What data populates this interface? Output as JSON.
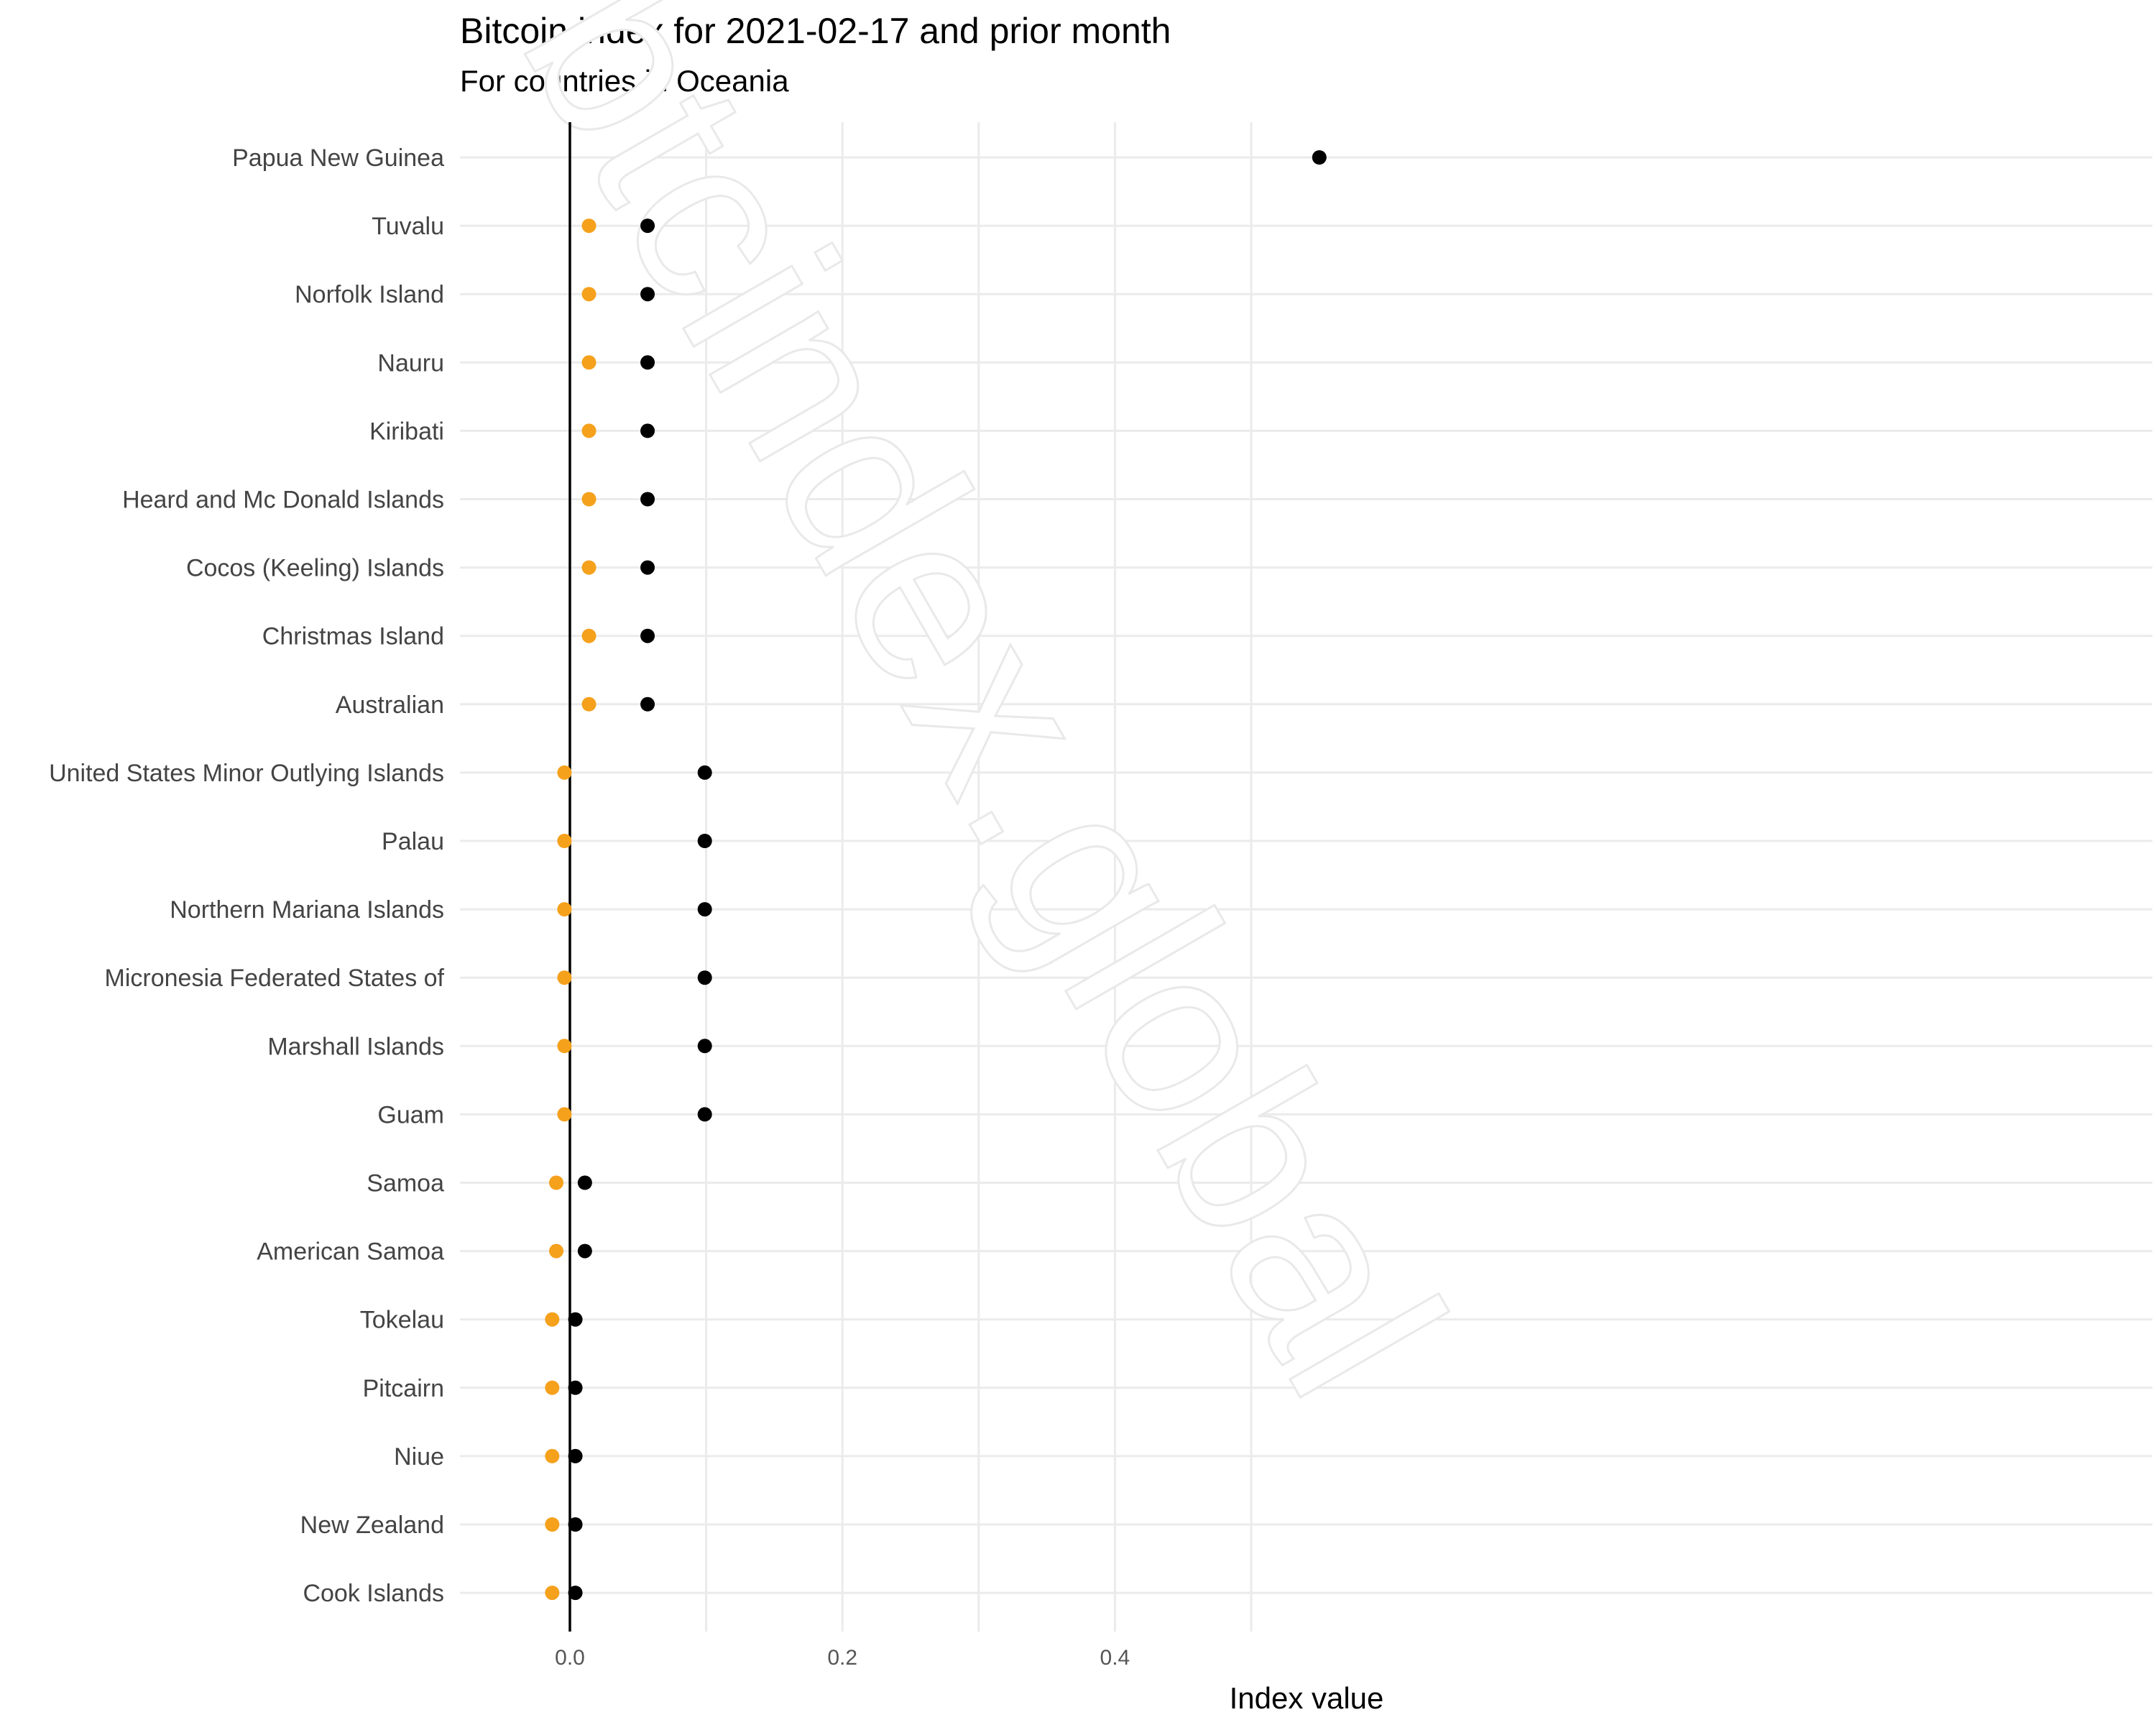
{
  "chart_data": {
    "type": "scatter",
    "title": "Bitcoin index for 2021-02-17 and prior month",
    "subtitle": "For countries in Oceania",
    "xlabel": "Index value",
    "ylabel": "",
    "xlim": [
      -0.04,
      0.58
    ],
    "x_ticks": [
      0.0,
      0.2,
      0.4
    ],
    "x_tick_labels": [
      "0.0",
      "0.2",
      "0.4"
    ],
    "grid": true,
    "watermark": "btcindex.global",
    "colors": {
      "current": "#000000",
      "prior": "#f5a11c",
      "grid": "#ebebeb",
      "zero_line": "#000000"
    },
    "countries": [
      "Papua New Guinea",
      "Tuvalu",
      "Norfolk Island",
      "Nauru",
      "Kiribati",
      "Heard and Mc Donald Islands",
      "Cocos (Keeling) Islands",
      "Christmas Island",
      "Australian",
      "United States Minor Outlying Islands",
      "Palau",
      "Northern Mariana Islands",
      "Micronesia Federated States of",
      "Marshall Islands",
      "Guam",
      "Samoa",
      "American Samoa",
      "Tokelau",
      "Pitcairn",
      "Niue",
      "New Zealand",
      "Cook Islands"
    ],
    "series": [
      {
        "values": [
          0.55,
          0.057,
          0.057,
          0.057,
          0.057,
          0.057,
          0.057,
          0.057,
          0.057,
          0.099,
          0.099,
          0.099,
          0.099,
          0.099,
          0.099,
          0.011,
          0.011,
          0.004,
          0.004,
          0.004,
          0.004,
          0.004
        ]
      },
      {
        "values": [
          null,
          0.014,
          0.014,
          0.014,
          0.014,
          0.014,
          0.014,
          0.014,
          0.014,
          -0.004,
          -0.004,
          -0.004,
          -0.004,
          -0.004,
          -0.004,
          -0.01,
          -0.01,
          -0.013,
          -0.013,
          -0.013,
          -0.013,
          -0.013
        ]
      }
    ]
  }
}
